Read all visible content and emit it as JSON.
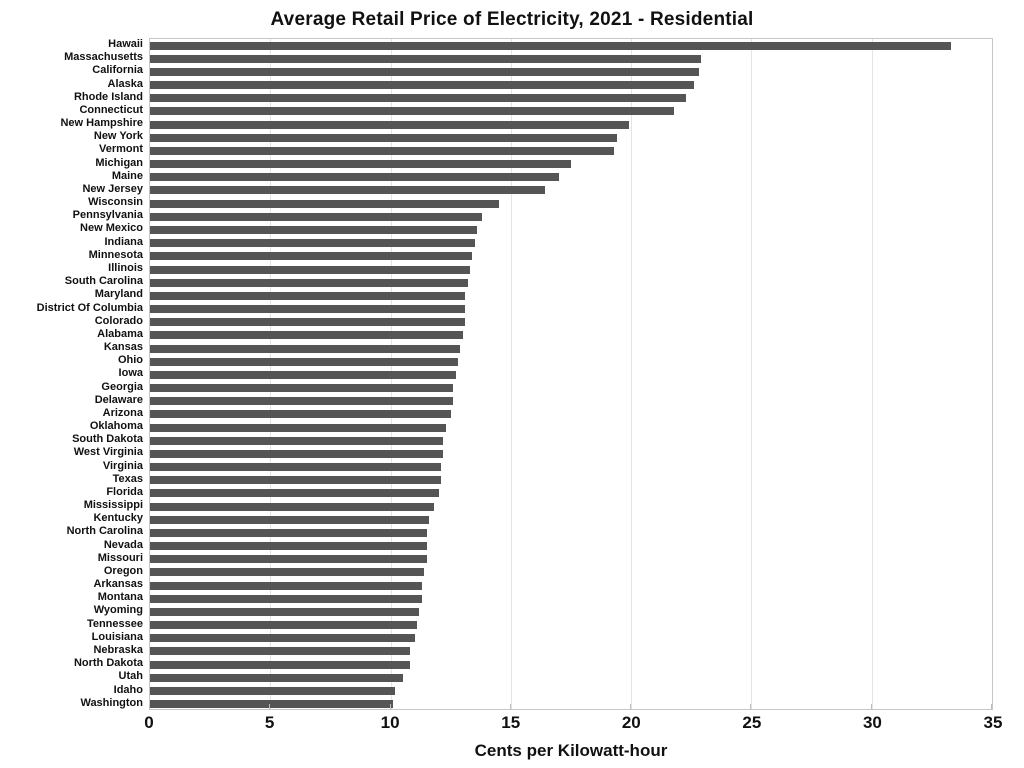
{
  "title": "Average Retail Price of Electricity, 2021 - Residential",
  "chart_data": {
    "type": "bar",
    "orientation": "horizontal",
    "title": "Average Retail Price of Electricity, 2021 - Residential",
    "xlabel": "Cents per Kilowatt-hour",
    "ylabel": "",
    "xlim": [
      0,
      35
    ],
    "xticks": [
      0,
      5,
      10,
      15,
      20,
      25,
      30,
      35
    ],
    "grid": "vertical",
    "legend": "none",
    "bar_color": "#555555",
    "gridline_color": "#e4e4e4",
    "border_color": "#c6c6c6",
    "categories": [
      "Hawaii",
      "Massachusetts",
      "California",
      "Alaska",
      "Rhode Island",
      "Connecticut",
      "New Hampshire",
      "New York",
      "Vermont",
      "Michigan",
      "Maine",
      "New Jersey",
      "Wisconsin",
      "Pennsylvania",
      "New Mexico",
      "Indiana",
      "Minnesota",
      "Illinois",
      "South Carolina",
      "Maryland",
      "District Of Columbia",
      "Colorado",
      "Alabama",
      "Kansas",
      "Ohio",
      "Iowa",
      "Georgia",
      "Delaware",
      "Arizona",
      "Oklahoma",
      "South Dakota",
      "West Virginia",
      "Virginia",
      "Texas",
      "Florida",
      "Mississippi",
      "Kentucky",
      "North Carolina",
      "Nevada",
      "Missouri",
      "Oregon",
      "Arkansas",
      "Montana",
      "Wyoming",
      "Tennessee",
      "Louisiana",
      "Nebraska",
      "North Dakota",
      "Utah",
      "Idaho",
      "Washington"
    ],
    "values": [
      33.3,
      22.9,
      22.8,
      22.6,
      22.3,
      21.8,
      19.9,
      19.4,
      19.3,
      17.5,
      17.0,
      16.4,
      14.5,
      13.8,
      13.6,
      13.5,
      13.4,
      13.3,
      13.2,
      13.1,
      13.1,
      13.1,
      13.0,
      12.9,
      12.8,
      12.7,
      12.6,
      12.6,
      12.5,
      12.3,
      12.2,
      12.2,
      12.1,
      12.1,
      12.0,
      11.8,
      11.6,
      11.5,
      11.5,
      11.5,
      11.4,
      11.3,
      11.3,
      11.2,
      11.1,
      11.0,
      10.8,
      10.8,
      10.5,
      10.2,
      10.1
    ]
  }
}
